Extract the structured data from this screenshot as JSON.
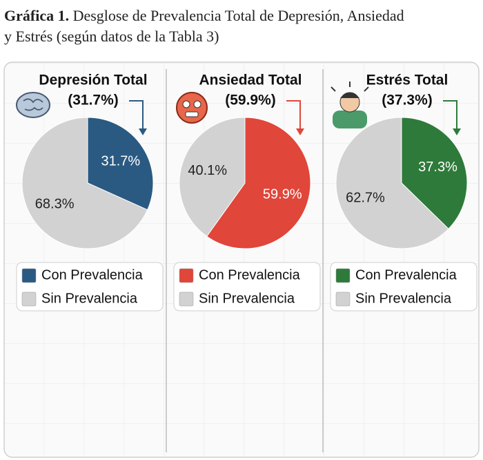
{
  "caption": {
    "label": "Gráfica 1.",
    "line1": "Desglose de Prevalencia Total de Depresión, Ansiedad",
    "line2": "y Estrés (según datos de la Tabla 3)"
  },
  "chart_data": [
    {
      "type": "pie",
      "title": "Depresión Total",
      "subtitle": "(31.7%)",
      "categories": [
        "Con Prevalencia",
        "Sin Prevalencia"
      ],
      "values": [
        31.7,
        68.3
      ],
      "value_labels": [
        "31.7%",
        "68.3%"
      ],
      "colors": [
        "#2a5a82",
        "#d2d2d2"
      ]
    },
    {
      "type": "pie",
      "title": "Ansiedad Total",
      "subtitle": "(59.9%)",
      "categories": [
        "Con Prevalencia",
        "Sin Prevalencia"
      ],
      "values": [
        59.9,
        40.1
      ],
      "value_labels": [
        "59.9%",
        "40.1%"
      ],
      "colors": [
        "#e0463a",
        "#d2d2d2"
      ]
    },
    {
      "type": "pie",
      "title": "Estrés Total",
      "subtitle": "(37.3%)",
      "categories": [
        "Con Prevalencia",
        "Sin Prevalencia"
      ],
      "values": [
        37.3,
        62.7
      ],
      "value_labels": [
        "37.3%",
        "62.7%"
      ],
      "colors": [
        "#2e7a3a",
        "#d2d2d2"
      ]
    }
  ]
}
